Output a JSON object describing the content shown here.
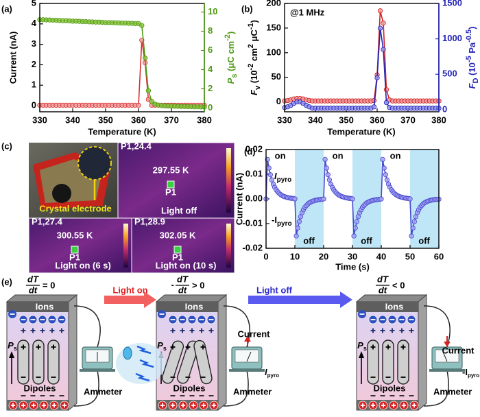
{
  "panel_labels": [
    "(a)",
    "(b)",
    "(c)",
    "(d)",
    "(e)"
  ],
  "chart_data": [
    {
      "type": "line",
      "xlabel": "Temperature (K)",
      "ylabel": "Current (nA)",
      "y2label": [
        "P",
        "s",
        " (μC cm",
        "-2",
        ")"
      ],
      "x": [
        330,
        331,
        332,
        333,
        334,
        335,
        336,
        337,
        338,
        339,
        340,
        341,
        342,
        343,
        344,
        345,
        346,
        347,
        348,
        349,
        350,
        351,
        352,
        353,
        354,
        355,
        356,
        357,
        358,
        359,
        360,
        361,
        362,
        363,
        364,
        365,
        366,
        367,
        368,
        369,
        370,
        371,
        372,
        373,
        374,
        375,
        376,
        377,
        378,
        379,
        380
      ],
      "xlim": [
        330,
        380
      ],
      "xticks": [
        330,
        340,
        350,
        360,
        370,
        380
      ],
      "ylim": [
        -0.3,
        5
      ],
      "yticks": [
        0,
        1,
        2,
        3,
        4,
        5
      ],
      "y2lim": [
        -0.4,
        10.9
      ],
      "y2ticks": [
        0,
        2,
        4,
        6,
        8,
        10
      ],
      "y2color": "#4f9a14",
      "series": [
        {
          "color": "#d83030",
          "marker": "#f4a6a6",
          "values": [
            0.02,
            0.02,
            0.02,
            0.02,
            0.02,
            0.02,
            0.02,
            0.02,
            0.02,
            0.02,
            0.02,
            0.02,
            0.02,
            0.02,
            0.02,
            0.02,
            0.02,
            0.02,
            0.02,
            0.02,
            0.02,
            0.02,
            0.02,
            0.02,
            0.02,
            0.02,
            0.02,
            0.02,
            0.02,
            0.02,
            0.02,
            3.2,
            2.1,
            0.3,
            0.02,
            0.02,
            0.02,
            0.02,
            0.02,
            0.02,
            0.02,
            0.02,
            0.02,
            0.02,
            0.02,
            0.02,
            0.02,
            0.02,
            0.02,
            0.02,
            0.02
          ]
        },
        {
          "color": "#4f9a14",
          "marker": "#8cc63f",
          "axis": "y2",
          "values": [
            9.2,
            9.2,
            9.18,
            9.17,
            9.15,
            9.15,
            9.12,
            9.1,
            9.1,
            9.08,
            9.05,
            9.05,
            9.03,
            9.0,
            9.0,
            8.98,
            8.97,
            8.95,
            8.95,
            8.93,
            8.9,
            8.9,
            8.9,
            8.88,
            8.87,
            8.85,
            8.85,
            8.83,
            8.82,
            8.8,
            8.8,
            8.6,
            5.2,
            1.8,
            0.7,
            0.4,
            0.3,
            0.25,
            0.22,
            0.2,
            0.2,
            0.18,
            0.17,
            0.15,
            0.15,
            0.14,
            0.13,
            0.12,
            0.12,
            0.11,
            0.1
          ]
        }
      ]
    },
    {
      "type": "line",
      "xlabel": "Temperature (K)",
      "ylabel": [
        "F",
        "v",
        " (10",
        "-2",
        " cm",
        "2",
        " μC",
        "-1",
        ")"
      ],
      "y2label": [
        "F",
        "D",
        " (10",
        "-5",
        " Pa",
        "-0.5",
        ")"
      ],
      "annotation": "@1 MHz",
      "x": [
        330,
        331,
        332,
        333,
        334,
        335,
        336,
        337,
        338,
        339,
        340,
        341,
        342,
        343,
        344,
        345,
        346,
        347,
        348,
        349,
        350,
        351,
        352,
        353,
        354,
        355,
        356,
        357,
        358,
        359,
        360,
        361,
        362,
        363,
        364,
        365,
        366,
        367,
        368,
        369,
        370,
        371,
        372,
        373,
        374,
        375,
        376,
        377,
        378,
        379,
        380
      ],
      "xlim": [
        330,
        380
      ],
      "xticks": [
        330,
        340,
        350,
        360,
        370,
        380
      ],
      "ylim": [
        -20,
        200
      ],
      "yticks": [
        0,
        50,
        100,
        150,
        200
      ],
      "y2lim": [
        -30,
        1500
      ],
      "y2ticks": [
        0,
        500,
        1000,
        1500
      ],
      "y2color": "#2424b8",
      "series": [
        {
          "color": "#d02020",
          "marker": "#f2a0a0",
          "values": [
            2,
            3,
            4,
            6,
            7,
            7,
            6,
            4,
            3,
            2,
            2,
            2,
            2,
            2,
            2,
            2,
            2,
            2,
            2,
            2,
            2,
            2,
            2,
            2,
            2,
            2,
            2,
            2,
            2,
            3,
            55,
            185,
            160,
            25,
            4,
            2,
            2,
            2,
            2,
            2,
            2,
            2,
            2,
            2,
            2,
            2,
            2,
            2,
            2,
            2,
            2
          ]
        },
        {
          "color": "#2424b8",
          "marker": "#9a9af0",
          "axis": "y2",
          "values": [
            30,
            40,
            60,
            90,
            110,
            110,
            90,
            60,
            40,
            20,
            20,
            20,
            20,
            20,
            20,
            20,
            20,
            20,
            20,
            20,
            20,
            20,
            20,
            20,
            20,
            20,
            20,
            20,
            20,
            40,
            450,
            1150,
            850,
            100,
            30,
            20,
            20,
            20,
            20,
            20,
            20,
            20,
            20,
            20,
            20,
            20,
            20,
            20,
            20,
            20,
            20
          ]
        }
      ]
    },
    {
      "type": "line",
      "xlabel": "Time (s)",
      "ylabel": "Current (nA)",
      "x": [
        0,
        0.5,
        1,
        1.5,
        2,
        2.5,
        3,
        3.5,
        4,
        4.5,
        5,
        5.5,
        6,
        6.5,
        7,
        7.5,
        8,
        8.5,
        9,
        9.5,
        10,
        10.5,
        11,
        11.5,
        12,
        12.5,
        13,
        13.5,
        14,
        14.5,
        15,
        15.5,
        16,
        16.5,
        17,
        17.5,
        18,
        18.5,
        19,
        19.5,
        20,
        20.5,
        21,
        21.5,
        22,
        22.5,
        23,
        23.5,
        24,
        24.5,
        25,
        25.5,
        26,
        26.5,
        27,
        27.5,
        28,
        28.5,
        29,
        29.5,
        30,
        30.5,
        31,
        31.5,
        32,
        32.5,
        33,
        33.5,
        34,
        34.5,
        35,
        35.5,
        36,
        36.5,
        37,
        37.5,
        38,
        38.5,
        39,
        39.5,
        40,
        40.5,
        41,
        41.5,
        42,
        42.5,
        43,
        43.5,
        44,
        44.5,
        45,
        45.5,
        46,
        46.5,
        47,
        47.5,
        48,
        48.5,
        49,
        49.5,
        50,
        50.5,
        51,
        51.5,
        52,
        52.5,
        53,
        53.5,
        54,
        54.5,
        55,
        55.5,
        56,
        56.5,
        57,
        57.5,
        58,
        58.5,
        59,
        59.5,
        60
      ],
      "xlim": [
        0,
        60
      ],
      "xticks": [
        0,
        10,
        20,
        30,
        40,
        50,
        60
      ],
      "ylim": [
        -0.02,
        0.02
      ],
      "yticks": [
        -0.02,
        -0.01,
        {
          "value": 0,
          "label": "0.00"
        },
        0.01,
        0.02
      ],
      "shaded": [
        [
          10,
          20
        ],
        [
          30,
          40
        ],
        [
          50,
          60
        ]
      ],
      "shade_color": "#bfe6f7",
      "on_label": "on",
      "off_label": "off",
      "ipyro": [
        "I",
        "pyro"
      ],
      "neg_ipyro": [
        "-I",
        "pyro"
      ],
      "series": [
        {
          "color": "#4848d0",
          "marker": "#a8a8f4",
          "values": [
            0,
            0.016,
            0.0125,
            0.0098,
            0.0077,
            0.006,
            0.0047,
            0.0037,
            0.0029,
            0.0023,
            0.0018,
            0.0014,
            0.0011,
            0.0009,
            0.0007,
            0.0005,
            0.0004,
            0.0003,
            0.0002,
            0.0002,
            0,
            -0.015,
            -0.0118,
            -0.0092,
            -0.0072,
            -0.0056,
            -0.0044,
            -0.0034,
            -0.0027,
            -0.0021,
            -0.0016,
            -0.0013,
            -0.001,
            -0.0008,
            -0.0006,
            -0.0005,
            -0.0004,
            -0.0003,
            -0.0002,
            -0.0002,
            0,
            0.016,
            0.0125,
            0.0098,
            0.0077,
            0.006,
            0.0047,
            0.0037,
            0.0029,
            0.0023,
            0.0018,
            0.0014,
            0.0011,
            0.0009,
            0.0007,
            0.0005,
            0.0004,
            0.0003,
            0.0002,
            0.0002,
            0,
            -0.015,
            -0.0118,
            -0.0092,
            -0.0072,
            -0.0056,
            -0.0044,
            -0.0034,
            -0.0027,
            -0.0021,
            -0.0016,
            -0.0013,
            -0.001,
            -0.0008,
            -0.0006,
            -0.0005,
            -0.0004,
            -0.0003,
            -0.0002,
            -0.0002,
            0,
            0.016,
            0.0125,
            0.0098,
            0.0077,
            0.006,
            0.0047,
            0.0037,
            0.0029,
            0.0023,
            0.0018,
            0.0014,
            0.0011,
            0.0009,
            0.0007,
            0.0005,
            0.0004,
            0.0003,
            0.0002,
            0.0002,
            0,
            -0.015,
            -0.0118,
            -0.0092,
            -0.0072,
            -0.0056,
            -0.0044,
            -0.0034,
            -0.0027,
            -0.0021,
            -0.0016,
            -0.0013,
            -0.001,
            -0.0008,
            -0.0006,
            -0.0005,
            -0.0004,
            -0.0003,
            -0.0002,
            -0.0002,
            -0.0001
          ]
        }
      ]
    }
  ],
  "images": {
    "temps": [
      "297.55 K",
      "300.55 K",
      "302.05 K"
    ],
    "captions": [
      "Light off",
      "Light on (6 s)",
      "Light on (10 s)"
    ],
    "electrode": "Crystal electrode",
    "point": "P1",
    "readings": [
      "P1,24.4",
      "P1,27.4",
      "P1,28.9"
    ]
  },
  "schematic": {
    "rates": [
      [
        "dT",
        "dt",
        "= 0"
      ],
      [
        "-",
        "dT",
        "dt",
        "> 0"
      ],
      [
        "dT",
        "dt",
        "< 0"
      ]
    ],
    "light_on": "Light on",
    "light_off": "Light off",
    "ions": "Ions",
    "dipoles": "Dipoles",
    "ammeter": "Ammeter",
    "current": "Current",
    "ps": [
      "P",
      "s"
    ],
    "ipyro": [
      "I",
      "pyro"
    ],
    "neg_ipyro": [
      "-I",
      "pyro"
    ]
  }
}
